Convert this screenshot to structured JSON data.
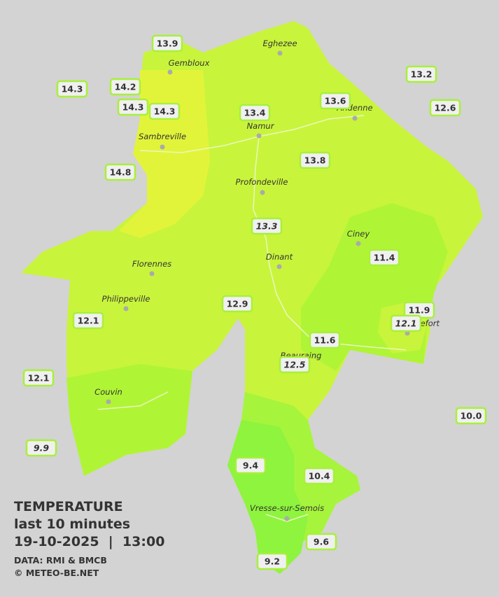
{
  "legend": {
    "title": "TEMPERATURE",
    "period": "last 10 minutes",
    "datetime": "19-10-2025  |  13:00",
    "source": "DATA: RMI & BMCB",
    "credit": "© METEO-BE.NET"
  },
  "cities": [
    "Eghezee",
    "Gembloux",
    "Andenne",
    "Namur",
    "Sambreville",
    "Profondeville",
    "Ciney",
    "Dinant",
    "Florennes",
    "Philippeville",
    "Rochefort",
    "Beauraing",
    "Couvin",
    "Vresse-sur-Semois"
  ],
  "stations": [
    "13.9",
    "14.3",
    "14.2",
    "14.3",
    "14.3",
    "13.4",
    "13.6",
    "13.2",
    "12.6",
    "14.8",
    "13.8",
    "13.3",
    "11.4",
    "12.9",
    "12.1",
    "11.9",
    "12.1",
    "11.6",
    "12.5",
    "12.1",
    "10.0",
    "9.9",
    "9.4",
    "10.4",
    "9.6",
    "9.2"
  ]
}
